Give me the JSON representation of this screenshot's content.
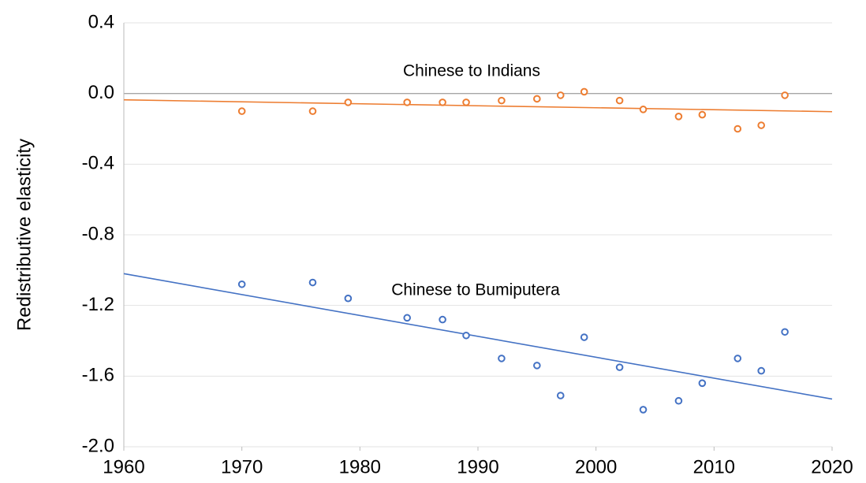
{
  "chart_data": {
    "type": "scatter",
    "y_label": "Redistributive elasticity",
    "x": [
      1970,
      1976,
      1979,
      1984,
      1987,
      1989,
      1992,
      1995,
      1997,
      1999,
      2002,
      2004,
      2007,
      2009,
      2012,
      2014,
      2016
    ],
    "series": [
      {
        "color": "#ED7D31",
        "values": [
          -0.1,
          -0.1,
          -0.05,
          -0.05,
          -0.05,
          -0.05,
          -0.04,
          -0.03,
          -0.01,
          0.01,
          -0.04,
          -0.09,
          -0.13,
          -0.12,
          -0.2,
          -0.18,
          -0.01
        ],
        "trend": {
          "x": [
            1960,
            2020
          ],
          "values": [
            -0.036,
            -0.103
          ]
        }
      },
      {
        "color": "#4472C4",
        "values": [
          -1.08,
          -1.07,
          -1.16,
          -1.27,
          -1.28,
          -1.37,
          -1.5,
          -1.54,
          -1.71,
          -1.38,
          -1.55,
          -1.79,
          -1.74,
          -1.64,
          -1.5,
          -1.57,
          -1.35
        ],
        "trend": {
          "x": [
            1960,
            2020
          ],
          "values": [
            -1.02,
            -1.73
          ]
        }
      }
    ],
    "annotations": [
      "Chinese to Indians",
      "Chinese to Bumiputera"
    ],
    "xlim": [
      1960,
      2020
    ],
    "xticks": [
      1960,
      1970,
      1980,
      1990,
      2000,
      2010,
      2020
    ],
    "ylim": [
      -2.0,
      0.4
    ],
    "yticks": [
      {
        "value": -2.0,
        "label": "-2.0"
      },
      {
        "value": -1.6,
        "label": "-1.6"
      },
      {
        "value": -1.2,
        "label": "-1.2"
      },
      {
        "value": -0.8,
        "label": "-0.8"
      },
      {
        "value": -0.4,
        "label": "-0.4"
      },
      {
        "value": 0,
        "label": "0.0"
      },
      {
        "value": 0.4,
        "label": "0.4"
      }
    ],
    "grid": true
  }
}
